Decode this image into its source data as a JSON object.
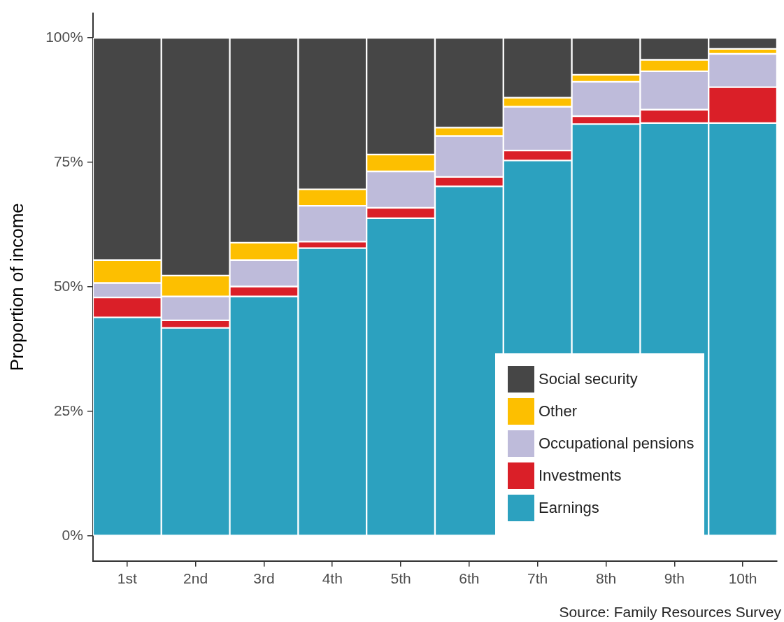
{
  "chart_data": {
    "type": "bar",
    "stacked": true,
    "ylabel": "Proportion of income",
    "categories": [
      "1st",
      "2nd",
      "3rd",
      "4th",
      "5th",
      "6th",
      "7th",
      "8th",
      "9th",
      "10th"
    ],
    "series": [
      {
        "name": "Earnings",
        "color": "#2ca1bf",
        "values": [
          43.9,
          41.8,
          48.1,
          57.8,
          63.8,
          70.2,
          75.4,
          82.7,
          82.9,
          82.9
        ]
      },
      {
        "name": "Investments",
        "color": "#da1f28",
        "values": [
          4.0,
          1.5,
          2.0,
          1.3,
          2.1,
          1.9,
          2.0,
          1.6,
          2.7,
          7.2
        ]
      },
      {
        "name": "Occupational pensions",
        "color": "#bebbda",
        "values": [
          2.9,
          4.8,
          5.3,
          7.2,
          7.3,
          8.2,
          8.8,
          6.9,
          7.7,
          6.7
        ]
      },
      {
        "name": "Other",
        "color": "#fdbf00",
        "values": [
          4.6,
          4.2,
          3.5,
          3.3,
          3.4,
          1.7,
          1.8,
          1.4,
          2.3,
          1.0
        ]
      },
      {
        "name": "Social security",
        "color": "#464646",
        "values": [
          44.6,
          47.7,
          41.1,
          30.4,
          23.4,
          18.0,
          12.0,
          7.4,
          4.4,
          2.2
        ]
      }
    ],
    "ylim": [
      -5,
      105
    ],
    "yticks": [
      {
        "value": 0,
        "label": "0%"
      },
      {
        "value": 25,
        "label": "25%"
      },
      {
        "value": 50,
        "label": "50%"
      },
      {
        "value": 75,
        "label": "75%"
      },
      {
        "value": 100,
        "label": "100%"
      }
    ],
    "grid": false,
    "legend": "bottom right",
    "annotations": [
      "Source: Family Resources Survey"
    ]
  }
}
